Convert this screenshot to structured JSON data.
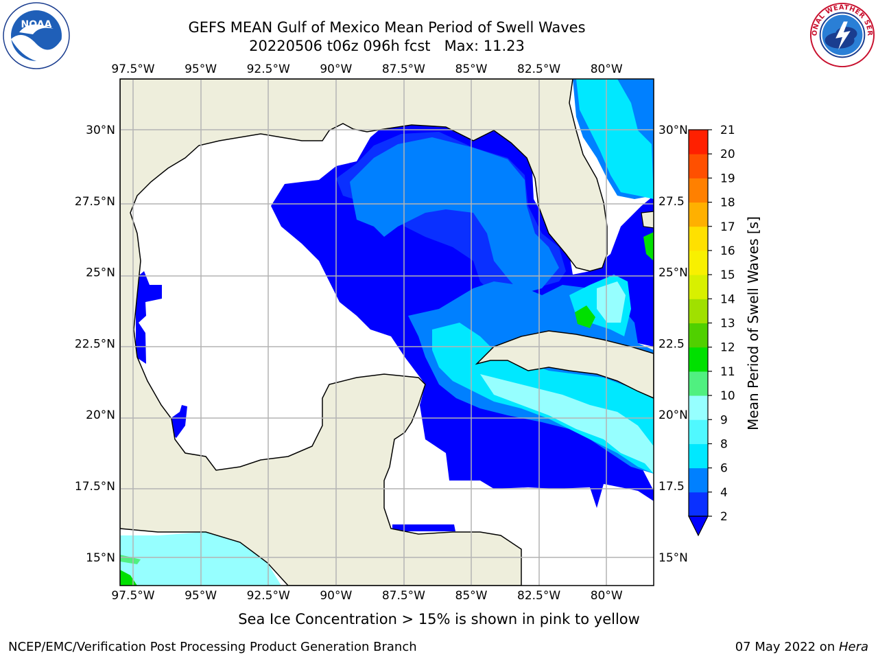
{
  "header": {
    "title_line1": "GEFS MEAN Gulf of Mexico Mean Period of Swell Waves",
    "title_line2": "20220506 t06z 096h fcst   Max: 11.23"
  },
  "chart_data": {
    "type": "heatmap",
    "title": "GEFS MEAN Gulf of Mexico Mean Period of Swell Waves",
    "subtitle_line": "20220506 t06z 096h fcst   Max: 11.23",
    "max_value": 11.23,
    "x_ticks": [
      "97.5°W",
      "95°W",
      "92.5°W",
      "90°W",
      "87.5°W",
      "85°W",
      "82.5°W",
      "80°W"
    ],
    "x_tick_values": [
      -97.5,
      -95,
      -92.5,
      -90,
      -87.5,
      -85,
      -82.5,
      -80
    ],
    "y_ticks": [
      "30°N",
      "27.5°N",
      "25°N",
      "22.5°N",
      "20°N",
      "17.5°N",
      "15°N"
    ],
    "y_ticks_right": [
      "30°N",
      "27.5",
      "25°N",
      "22.5",
      "20°N",
      "17.5",
      "15°N"
    ],
    "y_tick_values": [
      30,
      27.5,
      25,
      22.5,
      20,
      17.5,
      15
    ],
    "xlim": [
      -98,
      -78.3
    ],
    "ylim": [
      14,
      31.8
    ],
    "grid": true,
    "colorbar": {
      "label": "Mean Period of Swell Waves [s]",
      "ticks": [
        "2",
        "4",
        "6",
        "8",
        "9",
        "10",
        "11",
        "12",
        "13",
        "14",
        "15",
        "16",
        "17",
        "18",
        "19",
        "20",
        "21"
      ],
      "colors": [
        "#0a30ff",
        "#0080ff",
        "#00e8ff",
        "#50f8ff",
        "#96ffff",
        "#50f080",
        "#00e000",
        "#50d000",
        "#a0e000",
        "#d8f000",
        "#f8f000",
        "#ffe000",
        "#ffb000",
        "#ff8000",
        "#ff5000",
        "#ff2000",
        "#ff0000"
      ],
      "extend": "min",
      "under_color": "#0000ff"
    },
    "regions": [
      {
        "name": "blue-2s",
        "value": 2,
        "color": "#0000ff"
      },
      {
        "name": "medium-blue-3s",
        "value": 3,
        "color": "#0a30ff"
      },
      {
        "name": "azure-4s",
        "value": 4,
        "color": "#0080ff"
      },
      {
        "name": "cyan-6s",
        "value": 6,
        "color": "#00e8ff"
      },
      {
        "name": "light-cyan-8s",
        "value": 8,
        "color": "#96ffff"
      },
      {
        "name": "green-10s",
        "value": 10,
        "color": "#00e000"
      }
    ],
    "land_color": "#eeeedc",
    "no_data_color": "#ffffff"
  },
  "footer": {
    "note": "Sea Ice Concentration > 15% is shown in pink to yellow",
    "credit_left": "NCEP/EMC/Verification Post Processing Product Generation Branch",
    "credit_right_prefix": "07 May 2022 on ",
    "credit_right_machine": "Hera"
  },
  "logos": {
    "noaa_text": "NOAA",
    "nws_ring_text": "NATIONAL WEATHER SERVICE"
  }
}
